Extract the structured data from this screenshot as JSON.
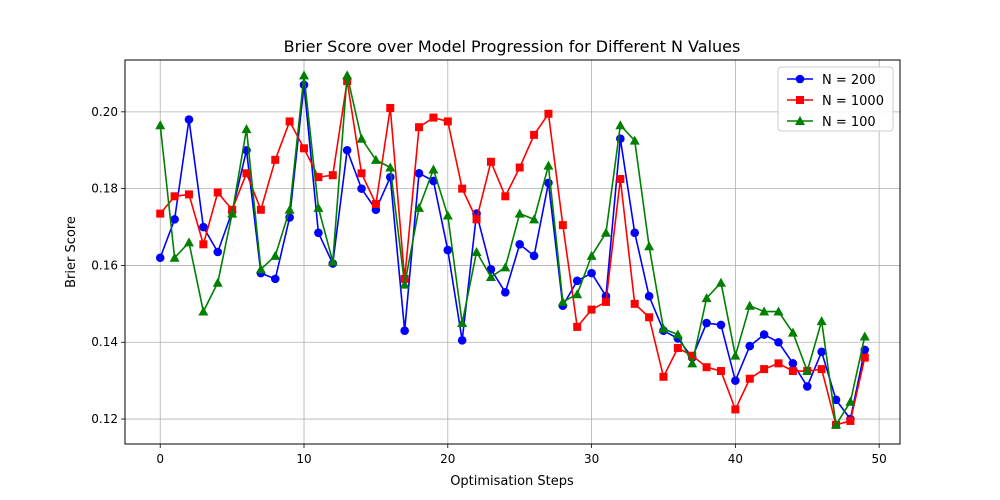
{
  "chart_data": {
    "type": "line",
    "title": "Brier Score over Model Progression for Different N Values",
    "xlabel": "Optimisation Steps",
    "ylabel": "Brier Score",
    "xlim": [
      -2.45,
      51.45
    ],
    "ylim": [
      0.1135,
      0.2135
    ],
    "xticks": [
      0,
      10,
      20,
      30,
      40,
      50
    ],
    "yticks": [
      0.12,
      0.14,
      0.16,
      0.18,
      0.2
    ],
    "ytick_labels": [
      "0.12",
      "0.14",
      "0.16",
      "0.18",
      "0.20"
    ],
    "grid": true,
    "legend_position": "top-right",
    "x": [
      0,
      1,
      2,
      3,
      4,
      5,
      6,
      7,
      8,
      9,
      10,
      11,
      12,
      13,
      14,
      15,
      16,
      17,
      18,
      19,
      20,
      21,
      22,
      23,
      24,
      25,
      26,
      27,
      28,
      29,
      30,
      31,
      32,
      33,
      34,
      35,
      36,
      37,
      38,
      39,
      40,
      41,
      42,
      43,
      44,
      45,
      46,
      47,
      48,
      49
    ],
    "series": [
      {
        "name": "N = 200",
        "color": "#0000ff",
        "marker": "circle",
        "values": [
          0.162,
          0.172,
          0.198,
          0.17,
          0.1635,
          0.174,
          0.19,
          0.158,
          0.1565,
          0.1725,
          0.207,
          0.1685,
          0.1605,
          0.19,
          0.18,
          0.1745,
          0.183,
          0.143,
          0.184,
          0.182,
          0.164,
          0.1405,
          0.1735,
          0.159,
          0.153,
          0.1655,
          0.1625,
          0.1815,
          0.1495,
          0.156,
          0.158,
          0.152,
          0.193,
          0.1685,
          0.152,
          0.143,
          0.141,
          0.136,
          0.145,
          0.1445,
          0.13,
          0.139,
          0.142,
          0.14,
          0.1345,
          0.1285,
          0.1375,
          0.125,
          0.12,
          0.138
        ]
      },
      {
        "name": "N = 1000",
        "color": "#ff0000",
        "marker": "square",
        "values": [
          0.1735,
          0.178,
          0.1785,
          0.1655,
          0.179,
          0.1745,
          0.184,
          0.1745,
          0.1875,
          0.1975,
          0.1905,
          0.183,
          0.1835,
          0.208,
          0.184,
          0.176,
          0.201,
          0.1565,
          0.196,
          0.1985,
          0.1975,
          0.18,
          0.172,
          0.187,
          0.178,
          0.1855,
          0.194,
          0.1995,
          0.1705,
          0.144,
          0.1485,
          0.1505,
          0.1825,
          0.15,
          0.1465,
          0.131,
          0.1385,
          0.1365,
          0.1335,
          0.1325,
          0.1225,
          0.1305,
          0.133,
          0.1345,
          0.1325,
          0.1325,
          0.133,
          0.1185,
          0.1195,
          0.136
        ]
      },
      {
        "name": "N = 100",
        "color": "#008000",
        "marker": "triangle",
        "values": [
          0.1965,
          0.162,
          0.166,
          0.148,
          0.1555,
          0.1735,
          0.1955,
          0.159,
          0.1625,
          0.1745,
          0.2095,
          0.175,
          0.161,
          0.2095,
          0.193,
          0.1875,
          0.1855,
          0.155,
          0.175,
          0.185,
          0.173,
          0.145,
          0.1635,
          0.157,
          0.1595,
          0.1735,
          0.172,
          0.186,
          0.1505,
          0.1525,
          0.1625,
          0.1685,
          0.1965,
          0.1925,
          0.165,
          0.1435,
          0.142,
          0.1345,
          0.1515,
          0.1555,
          0.1365,
          0.1495,
          0.148,
          0.148,
          0.1425,
          0.1325,
          0.1455,
          0.1185,
          0.1245,
          0.1415
        ]
      }
    ]
  }
}
